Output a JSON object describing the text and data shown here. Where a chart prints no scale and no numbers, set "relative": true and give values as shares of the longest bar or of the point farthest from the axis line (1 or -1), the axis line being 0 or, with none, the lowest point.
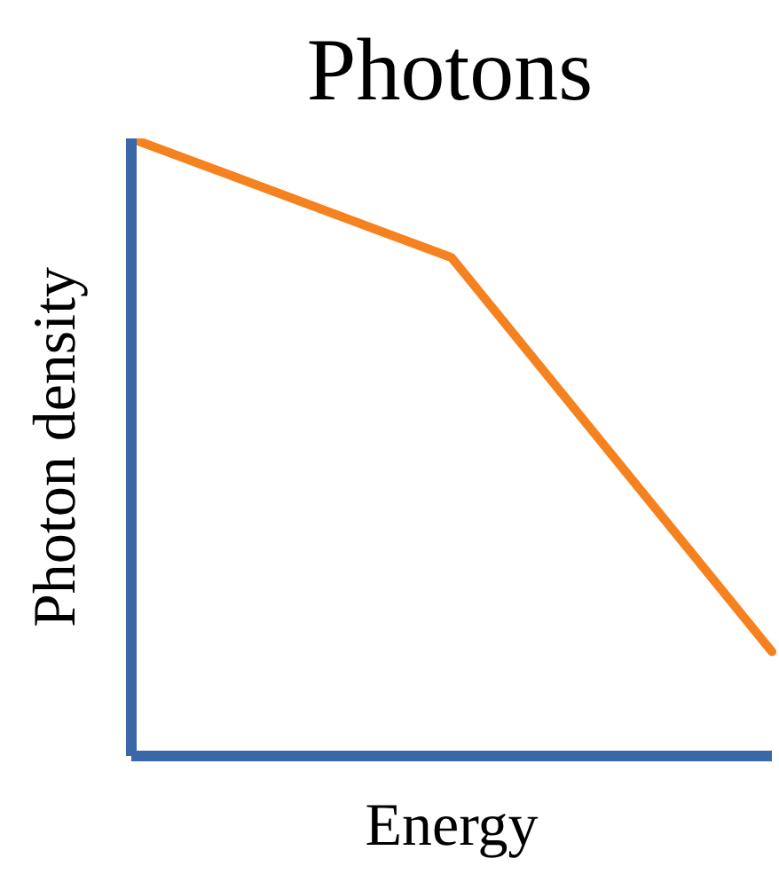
{
  "chart_data": {
    "type": "line",
    "title": "Photons",
    "xlabel": "Energy",
    "ylabel": "Photon density",
    "relative": true,
    "categories": [
      null,
      null,
      null
    ],
    "series": [
      {
        "color": "#f5821f",
        "values": [
          1,
          0.807,
          0.169
        ]
      }
    ]
  }
}
